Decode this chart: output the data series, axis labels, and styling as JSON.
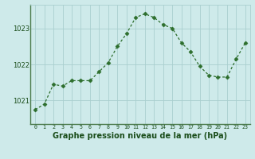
{
  "x": [
    0,
    1,
    2,
    3,
    4,
    5,
    6,
    7,
    8,
    9,
    10,
    11,
    12,
    13,
    14,
    15,
    16,
    17,
    18,
    19,
    20,
    21,
    22,
    23
  ],
  "y": [
    1020.75,
    1020.9,
    1021.45,
    1021.4,
    1021.55,
    1021.55,
    1021.55,
    1021.8,
    1022.05,
    1022.5,
    1022.85,
    1023.3,
    1023.4,
    1023.3,
    1023.1,
    1023.0,
    1022.6,
    1022.35,
    1021.95,
    1021.7,
    1021.65,
    1021.65,
    1022.15,
    1022.6
  ],
  "line_color": "#2d6e2d",
  "marker": "D",
  "marker_size": 2.5,
  "bg_color": "#ceeaea",
  "grid_color": "#aacfcf",
  "xlabel": "Graphe pression niveau de la mer (hPa)",
  "xlabel_color": "#1a4d1a",
  "xlabel_fontsize": 7.0,
  "tick_color": "#1a4d1a",
  "ytick_labels": [
    "1021",
    "1022",
    "1023"
  ],
  "ytick_values": [
    1021,
    1022,
    1023
  ],
  "xtick_labels": [
    "0",
    "1",
    "2",
    "3",
    "4",
    "5",
    "6",
    "7",
    "8",
    "9",
    "10",
    "11",
    "12",
    "13",
    "14",
    "15",
    "16",
    "17",
    "18",
    "19",
    "20",
    "21",
    "22",
    "23"
  ],
  "ylim": [
    1020.35,
    1023.65
  ],
  "xlim": [
    -0.5,
    23.5
  ]
}
